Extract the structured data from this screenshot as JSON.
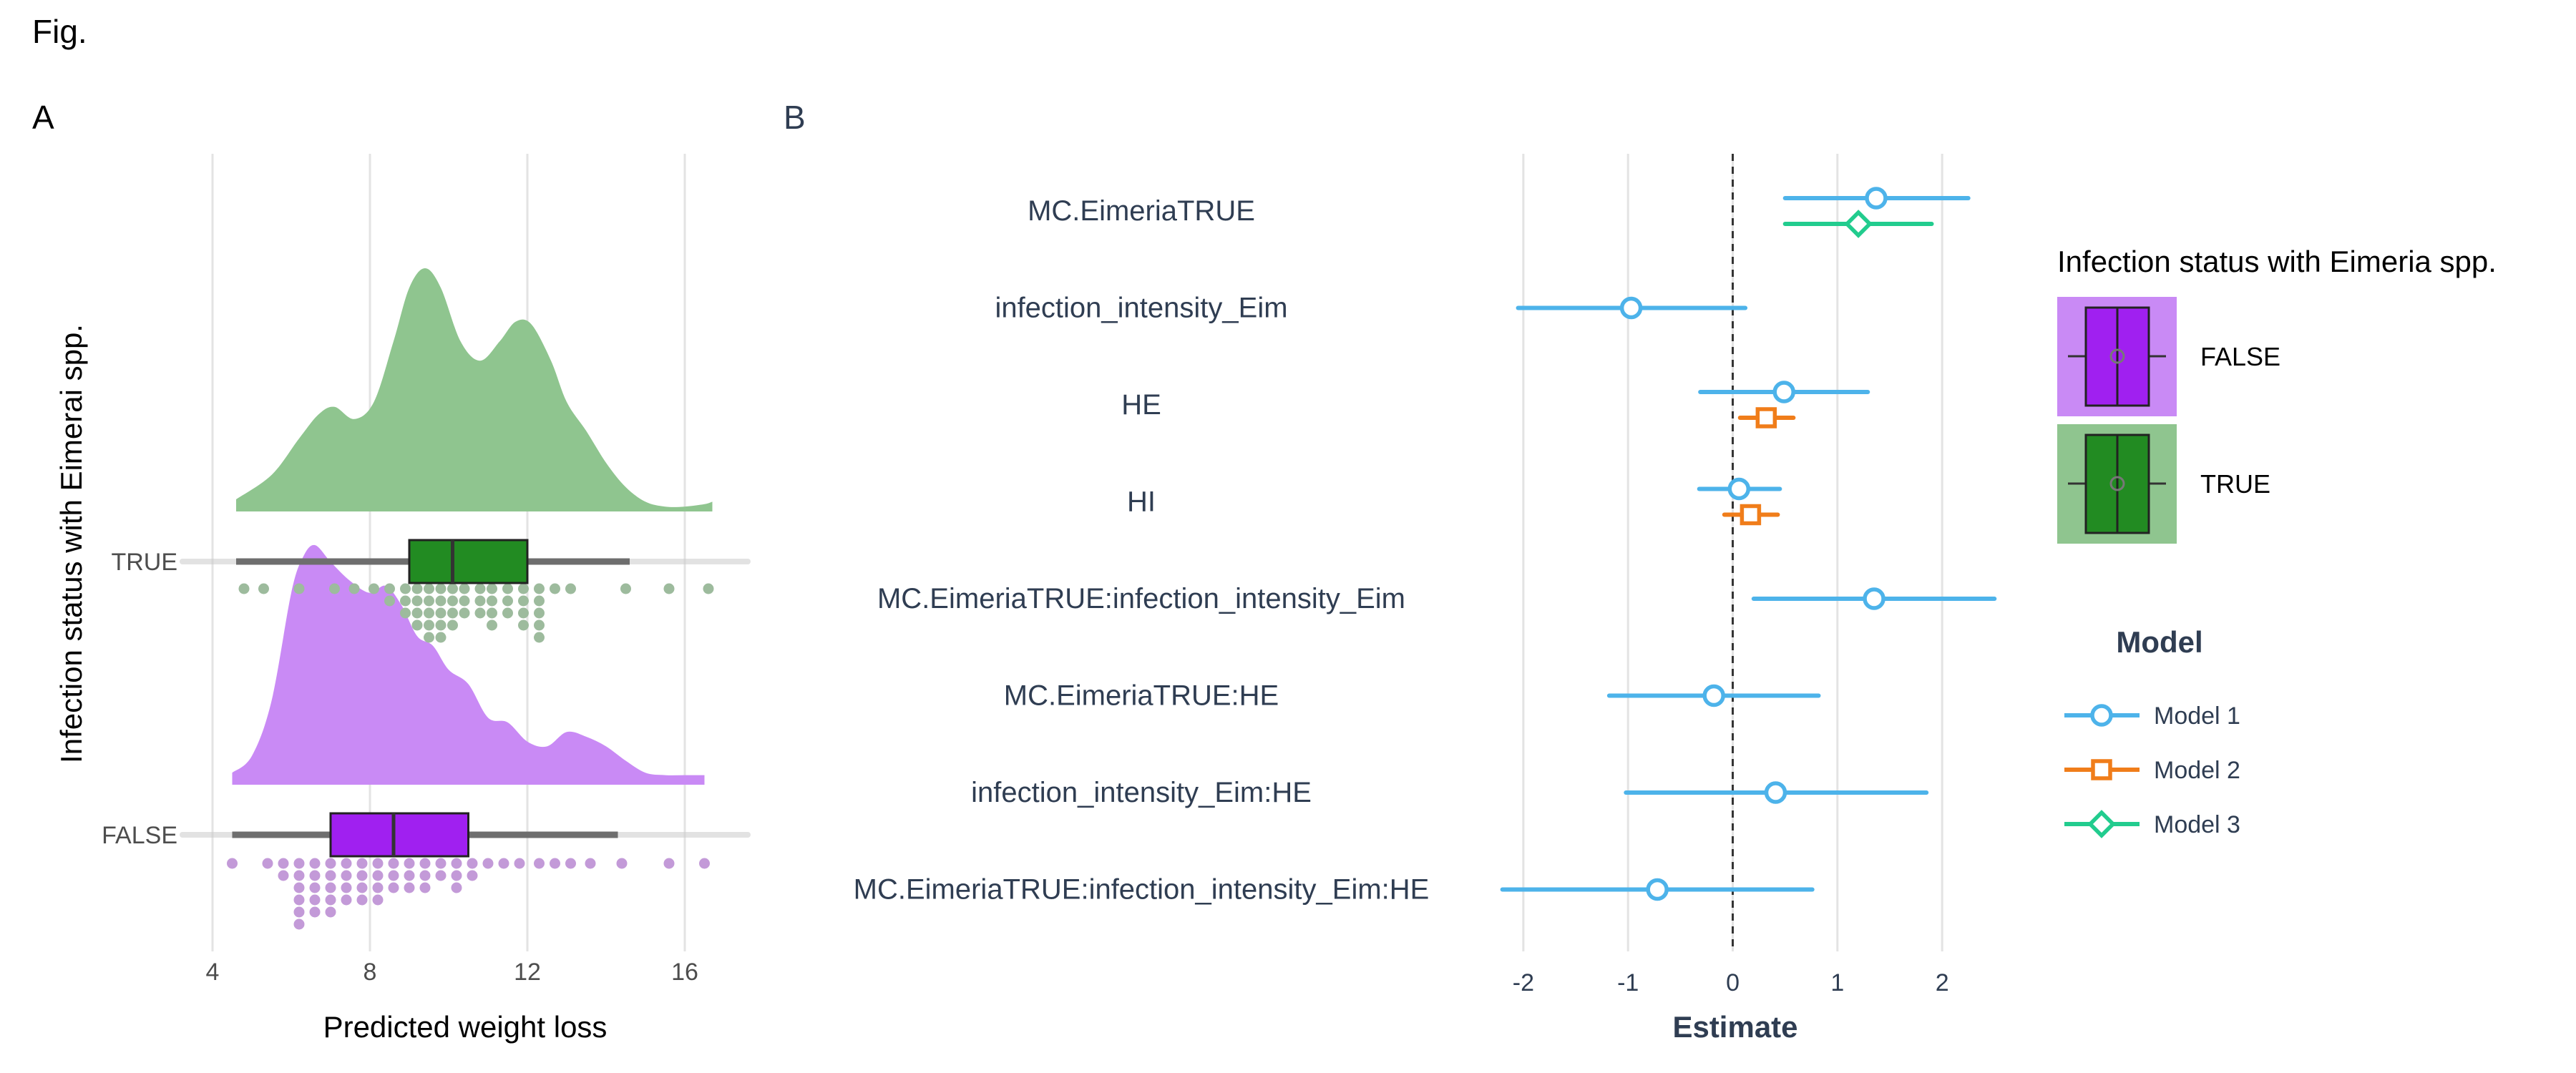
{
  "figure": {
    "title": "Fig."
  },
  "chart_data": [
    {
      "panel": "A",
      "type": "raincloud",
      "xlabel": "Predicted weight loss",
      "ylabel": "Infection status with Eimerai spp.",
      "xlim": [
        3.6,
        17.6
      ],
      "xticks": [
        4,
        8,
        12,
        16
      ],
      "grid": true,
      "categories": [
        "TRUE",
        "FALSE"
      ],
      "colors": {
        "TRUE": "#228B22",
        "FALSE": "#A020F0",
        "TRUE_light": "#8FC58F",
        "FALSE_light": "#C98AF5",
        "TRUE_dot": "#9DBB9D",
        "FALSE_dot": "#C39AD8"
      },
      "groups": [
        {
          "name": "TRUE",
          "box": {
            "min": 4.6,
            "q1": 9.0,
            "median": 10.1,
            "q3": 12.0,
            "max": 14.6
          },
          "density": {
            "x": [
              4.6,
              5.5,
              6.2,
              6.7,
              7.1,
              7.6,
              8.1,
              8.6,
              9.0,
              9.4,
              9.8,
              10.3,
              10.8,
              11.3,
              11.7,
              12.1,
              12.6,
              13.0,
              13.5,
              14.0,
              14.5,
              15.0,
              15.5,
              16.0,
              16.5,
              16.7
            ],
            "y": [
              0.05,
              0.15,
              0.3,
              0.4,
              0.43,
              0.38,
              0.45,
              0.7,
              0.92,
              1.0,
              0.92,
              0.7,
              0.62,
              0.7,
              0.78,
              0.77,
              0.62,
              0.45,
              0.33,
              0.2,
              0.1,
              0.04,
              0.02,
              0.02,
              0.03,
              0.04
            ]
          },
          "dots": [
            {
              "x": 4.8,
              "n": 1
            },
            {
              "x": 5.3,
              "n": 1
            },
            {
              "x": 6.2,
              "n": 1
            },
            {
              "x": 7.1,
              "n": 1
            },
            {
              "x": 7.6,
              "n": 1
            },
            {
              "x": 8.1,
              "n": 1
            },
            {
              "x": 8.5,
              "n": 2
            },
            {
              "x": 8.9,
              "n": 3
            },
            {
              "x": 9.2,
              "n": 4
            },
            {
              "x": 9.5,
              "n": 5
            },
            {
              "x": 9.8,
              "n": 5
            },
            {
              "x": 10.1,
              "n": 4
            },
            {
              "x": 10.4,
              "n": 3
            },
            {
              "x": 10.8,
              "n": 3
            },
            {
              "x": 11.1,
              "n": 4
            },
            {
              "x": 11.5,
              "n": 3
            },
            {
              "x": 11.9,
              "n": 4
            },
            {
              "x": 12.3,
              "n": 5
            },
            {
              "x": 12.7,
              "n": 1
            },
            {
              "x": 13.1,
              "n": 1
            },
            {
              "x": 14.5,
              "n": 1
            },
            {
              "x": 15.6,
              "n": 1
            },
            {
              "x": 16.6,
              "n": 1
            }
          ]
        },
        {
          "name": "FALSE",
          "box": {
            "min": 4.5,
            "q1": 7.0,
            "median": 8.6,
            "q3": 10.5,
            "max": 14.3
          },
          "density": {
            "x": [
              4.5,
              5.0,
              5.5,
              6.0,
              6.3,
              6.6,
              7.0,
              7.5,
              8.0,
              8.4,
              8.8,
              9.2,
              9.6,
              10.0,
              10.5,
              11.0,
              11.5,
              12.0,
              12.5,
              13.0,
              13.5,
              14.0,
              14.5,
              15.0,
              15.5,
              16.0,
              16.5
            ],
            "y": [
              0.05,
              0.12,
              0.35,
              0.8,
              0.95,
              1.0,
              0.93,
              0.85,
              0.8,
              0.83,
              0.75,
              0.62,
              0.58,
              0.48,
              0.42,
              0.28,
              0.26,
              0.18,
              0.16,
              0.22,
              0.2,
              0.16,
              0.1,
              0.05,
              0.04,
              0.04,
              0.04
            ]
          },
          "dots": [
            {
              "x": 4.5,
              "n": 1
            },
            {
              "x": 5.4,
              "n": 1
            },
            {
              "x": 5.8,
              "n": 2
            },
            {
              "x": 6.2,
              "n": 6
            },
            {
              "x": 6.6,
              "n": 5
            },
            {
              "x": 7.0,
              "n": 5
            },
            {
              "x": 7.4,
              "n": 4
            },
            {
              "x": 7.8,
              "n": 4
            },
            {
              "x": 8.2,
              "n": 4
            },
            {
              "x": 8.6,
              "n": 3
            },
            {
              "x": 9.0,
              "n": 3
            },
            {
              "x": 9.4,
              "n": 3
            },
            {
              "x": 9.8,
              "n": 2
            },
            {
              "x": 10.2,
              "n": 3
            },
            {
              "x": 10.6,
              "n": 2
            },
            {
              "x": 11.0,
              "n": 1
            },
            {
              "x": 11.4,
              "n": 1
            },
            {
              "x": 11.8,
              "n": 1
            },
            {
              "x": 12.3,
              "n": 1
            },
            {
              "x": 12.7,
              "n": 1
            },
            {
              "x": 13.1,
              "n": 1
            },
            {
              "x": 13.6,
              "n": 1
            },
            {
              "x": 14.4,
              "n": 1
            },
            {
              "x": 15.6,
              "n": 1
            },
            {
              "x": 16.5,
              "n": 1
            }
          ]
        }
      ]
    },
    {
      "panel": "B",
      "type": "coefficient-plot",
      "xlabel": "Estimate",
      "xlim": [
        -2.3,
        2.45
      ],
      "xticks": [
        -2,
        -1,
        0,
        1,
        2
      ],
      "grid": true,
      "reference_line": 0,
      "terms": [
        "MC.EimeriaTRUE",
        "infection_intensity_Eim",
        "HE",
        "HI",
        "MC.EimeriaTRUE:infection_intensity_Eim",
        "MC.EimeriaTRUE:HE",
        "infection_intensity_Eim:HE",
        "MC.EimeriaTRUE:infection_intensity_Eim:HE"
      ],
      "series": [
        {
          "name": "Model 1",
          "color": "#4DB3EA",
          "shape": "circle",
          "points": [
            {
              "term": "MC.EimeriaTRUE",
              "estimate": 1.37,
              "low": 0.5,
              "high": 2.25
            },
            {
              "term": "infection_intensity_Eim",
              "estimate": -0.97,
              "low": -2.05,
              "high": 0.12
            },
            {
              "term": "HE",
              "estimate": 0.49,
              "low": -0.31,
              "high": 1.29
            },
            {
              "term": "HI",
              "estimate": 0.06,
              "low": -0.32,
              "high": 0.45
            },
            {
              "term": "MC.EimeriaTRUE:infection_intensity_Eim",
              "estimate": 1.35,
              "low": 0.2,
              "high": 2.5
            },
            {
              "term": "MC.EimeriaTRUE:HE",
              "estimate": -0.18,
              "low": -1.18,
              "high": 0.82
            },
            {
              "term": "infection_intensity_Eim:HE",
              "estimate": 0.41,
              "low": -1.02,
              "high": 1.85
            },
            {
              "term": "MC.EimeriaTRUE:infection_intensity_Eim:HE",
              "estimate": -0.72,
              "low": -2.2,
              "high": 0.76
            }
          ]
        },
        {
          "name": "Model 2",
          "color": "#F07D1A",
          "shape": "square",
          "points": [
            {
              "term": "HE",
              "estimate": 0.32,
              "low": 0.07,
              "high": 0.58
            },
            {
              "term": "HI",
              "estimate": 0.17,
              "low": -0.08,
              "high": 0.43
            }
          ]
        },
        {
          "name": "Model 3",
          "color": "#22CC8E",
          "shape": "diamond",
          "points": [
            {
              "term": "MC.EimeriaTRUE",
              "estimate": 1.2,
              "low": 0.5,
              "high": 1.9
            }
          ]
        }
      ],
      "legends": {
        "fill_title": "Infection status with Eimeria spp.",
        "fill_items": [
          "FALSE",
          "TRUE"
        ],
        "model_title": "Model"
      }
    }
  ]
}
